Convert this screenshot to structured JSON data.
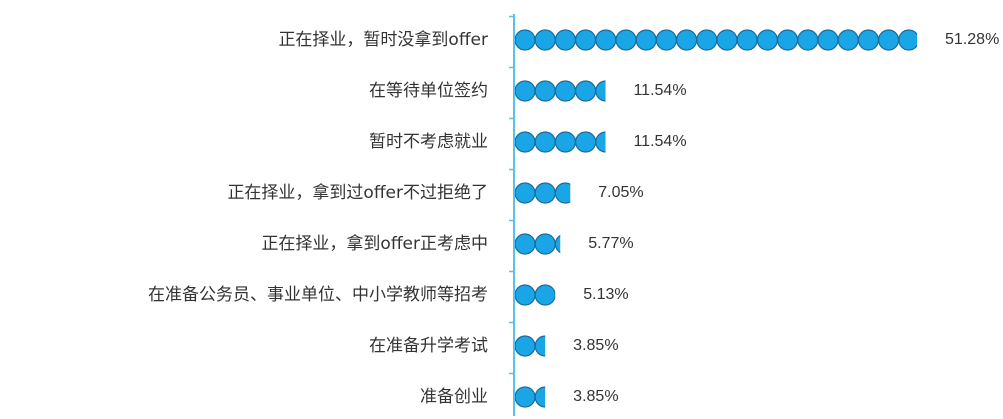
{
  "chart_data": {
    "type": "pictogram_bar",
    "categories": [
      "正在择业，暂时没拿到offer",
      "在等待单位签约",
      "暂时不考虑就业",
      "正在择业，拿到过offer不过拒绝了",
      "正在择业，拿到offer正考虑中",
      "在准备公务员、事业单位、中小学教师等招考",
      "在准备升学考试",
      "准备创业"
    ],
    "values": [
      51.28,
      11.54,
      11.54,
      7.05,
      5.77,
      5.13,
      3.85,
      3.85
    ],
    "value_labels": [
      "51.28%",
      "11.54%",
      "11.54%",
      "7.05%",
      "5.77%",
      "5.13%",
      "3.85%",
      "3.85%"
    ],
    "color": "#1aa6e6"
  }
}
